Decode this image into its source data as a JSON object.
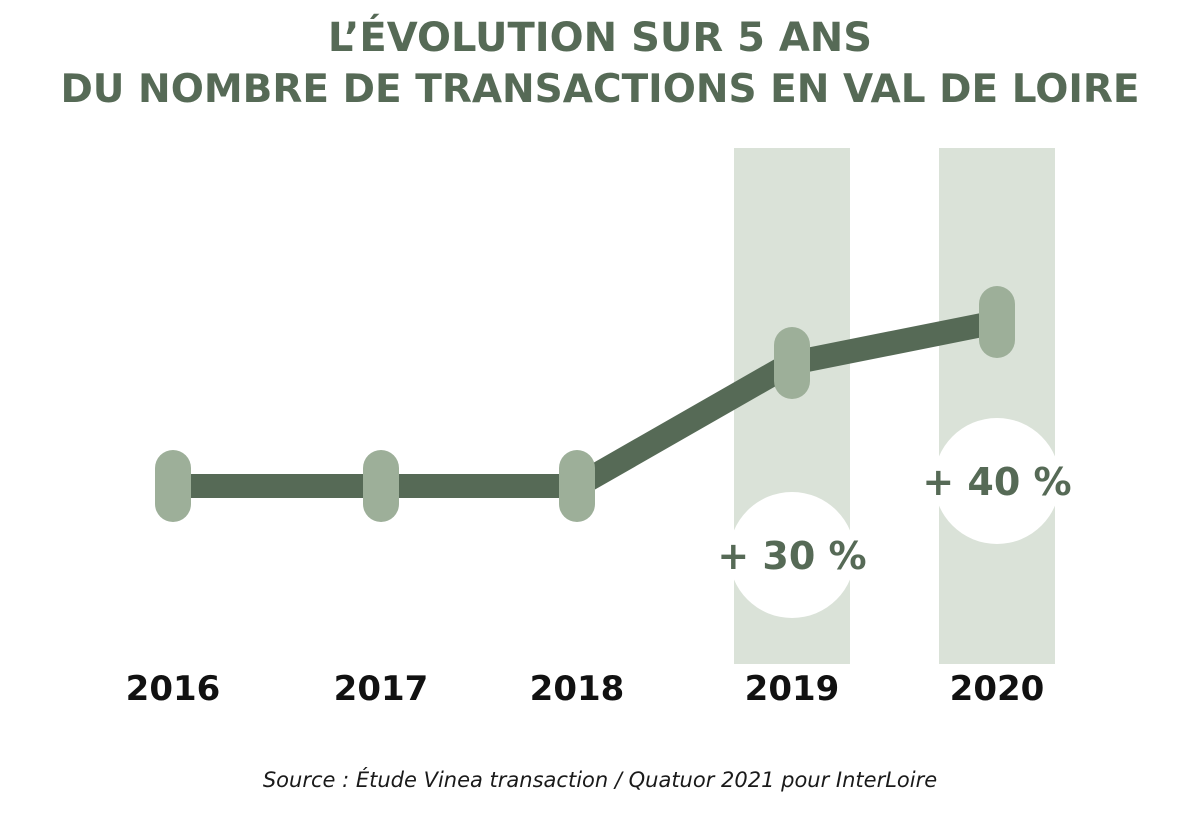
{
  "title_line1": "L’ÉVOLUTION SUR 5 ANS",
  "title_line2": "DU NOMBRE DE TRANSACTIONS EN VAL DE LOIRE",
  "source": "Source : Étude Vinea transaction / Quatuor 2021 pour InterLoire",
  "colors": {
    "title": "#566a56",
    "line": "#566a56",
    "marker": "#9daf99",
    "highlight_band": "#dae2d8",
    "annotation_bubble": "#ffffff",
    "annotation_text": "#566a56",
    "year_label": "#111111"
  },
  "chart_data": {
    "type": "line",
    "categories": [
      "2016",
      "2017",
      "2018",
      "2019",
      "2020"
    ],
    "values": [
      100,
      100,
      100,
      130,
      140
    ],
    "highlighted_categories": [
      "2019",
      "2020"
    ],
    "annotations": [
      {
        "category": "2019",
        "text": "+ 30 %"
      },
      {
        "category": "2020",
        "text": "+ 40 %"
      }
    ],
    "title": "",
    "xlabel": "",
    "ylabel": "",
    "ylim": [
      60,
      200
    ],
    "grid": false,
    "legend": "none"
  }
}
